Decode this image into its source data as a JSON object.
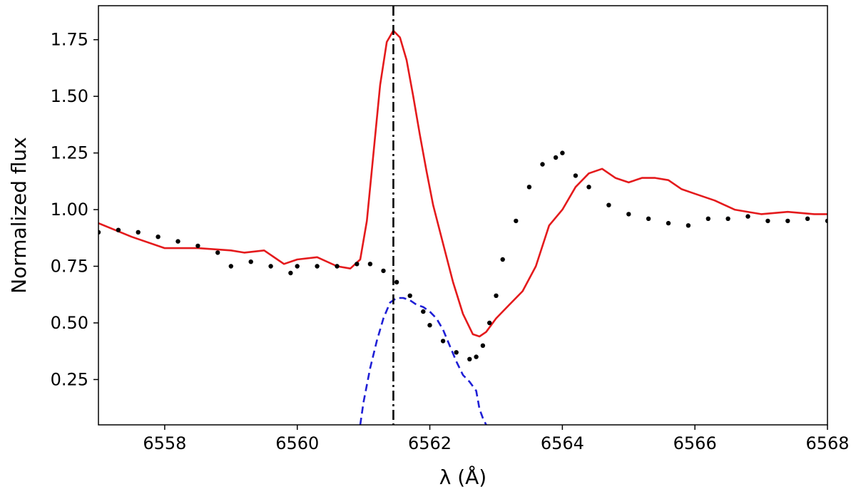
{
  "chart_data": {
    "type": "line",
    "title": "",
    "xlabel": "λ (Å)",
    "ylabel": "Normalized flux",
    "xlim": [
      6557.0,
      6568.0
    ],
    "ylim": [
      0.05,
      1.9
    ],
    "xticks": [
      6558,
      6560,
      6562,
      6564,
      6566,
      6568
    ],
    "xtick_labels": [
      "6558",
      "6560",
      "6562",
      "6564",
      "6566",
      "6568"
    ],
    "yticks": [
      0.25,
      0.5,
      0.75,
      1.0,
      1.25,
      1.5,
      1.75
    ],
    "ytick_labels": [
      "0.25",
      "0.50",
      "0.75",
      "1.00",
      "1.25",
      "1.50",
      "1.75"
    ],
    "grid": false,
    "legend": "none",
    "vline": {
      "x": 6561.45,
      "style": "dash-dot",
      "color": "#000000"
    },
    "series": [
      {
        "style": "solid",
        "color": "#e41a1c",
        "x": [
          6557.0,
          6557.5,
          6558.0,
          6558.5,
          6559.0,
          6559.2,
          6559.5,
          6559.8,
          6560.0,
          6560.3,
          6560.6,
          6560.8,
          6560.95,
          6561.05,
          6561.15,
          6561.25,
          6561.35,
          6561.45,
          6561.55,
          6561.65,
          6561.75,
          6561.85,
          6561.95,
          6562.05,
          6562.2,
          6562.35,
          6562.5,
          6562.65,
          6562.75,
          6562.85,
          6563.0,
          6563.2,
          6563.4,
          6563.6,
          6563.8,
          6564.0,
          6564.2,
          6564.4,
          6564.6,
          6564.8,
          6565.0,
          6565.2,
          6565.4,
          6565.6,
          6565.8,
          6566.0,
          6566.3,
          6566.6,
          6567.0,
          6567.4,
          6567.8,
          6568.0
        ],
        "y": [
          0.94,
          0.88,
          0.83,
          0.83,
          0.82,
          0.81,
          0.82,
          0.76,
          0.78,
          0.79,
          0.75,
          0.74,
          0.78,
          0.95,
          1.25,
          1.55,
          1.74,
          1.79,
          1.76,
          1.66,
          1.5,
          1.33,
          1.17,
          1.02,
          0.85,
          0.68,
          0.54,
          0.45,
          0.44,
          0.46,
          0.52,
          0.58,
          0.64,
          0.75,
          0.93,
          1.0,
          1.1,
          1.16,
          1.18,
          1.14,
          1.12,
          1.14,
          1.14,
          1.13,
          1.09,
          1.07,
          1.04,
          1.0,
          0.98,
          0.99,
          0.98,
          0.98
        ]
      },
      {
        "style": "dashed",
        "color": "#1f1fd6",
        "x": [
          6560.95,
          6561.0,
          6561.1,
          6561.2,
          6561.3,
          6561.4,
          6561.5,
          6561.6,
          6561.7,
          6561.8,
          6561.9,
          6562.0,
          6562.1,
          6562.2,
          6562.3,
          6562.4,
          6562.5,
          6562.6,
          6562.7,
          6562.75,
          6562.8,
          6562.85
        ],
        "y": [
          0.05,
          0.15,
          0.3,
          0.42,
          0.52,
          0.59,
          0.61,
          0.61,
          0.6,
          0.58,
          0.57,
          0.55,
          0.52,
          0.47,
          0.4,
          0.33,
          0.27,
          0.24,
          0.2,
          0.12,
          0.08,
          0.05
        ]
      },
      {
        "style": "dots",
        "color": "#000000",
        "x": [
          6557.0,
          6557.3,
          6557.6,
          6557.9,
          6558.2,
          6558.5,
          6558.8,
          6559.0,
          6559.3,
          6559.6,
          6559.9,
          6560.0,
          6560.3,
          6560.6,
          6560.9,
          6561.1,
          6561.3,
          6561.5,
          6561.7,
          6561.9,
          6562.0,
          6562.2,
          6562.4,
          6562.6,
          6562.7,
          6562.8,
          6562.9,
          6563.0,
          6563.1,
          6563.3,
          6563.5,
          6563.7,
          6563.9,
          6564.0,
          6564.2,
          6564.4,
          6564.7,
          6565.0,
          6565.3,
          6565.6,
          6565.9,
          6566.2,
          6566.5,
          6566.8,
          6567.1,
          6567.4,
          6567.7,
          6568.0
        ],
        "y": [
          0.9,
          0.91,
          0.9,
          0.88,
          0.86,
          0.84,
          0.81,
          0.75,
          0.77,
          0.75,
          0.72,
          0.75,
          0.75,
          0.75,
          0.76,
          0.76,
          0.73,
          0.68,
          0.62,
          0.55,
          0.49,
          0.42,
          0.37,
          0.34,
          0.35,
          0.4,
          0.5,
          0.62,
          0.78,
          0.95,
          1.1,
          1.2,
          1.23,
          1.25,
          1.15,
          1.1,
          1.02,
          0.98,
          0.96,
          0.94,
          0.93,
          0.96,
          0.96,
          0.97,
          0.95,
          0.95,
          0.96,
          0.95
        ]
      }
    ]
  }
}
